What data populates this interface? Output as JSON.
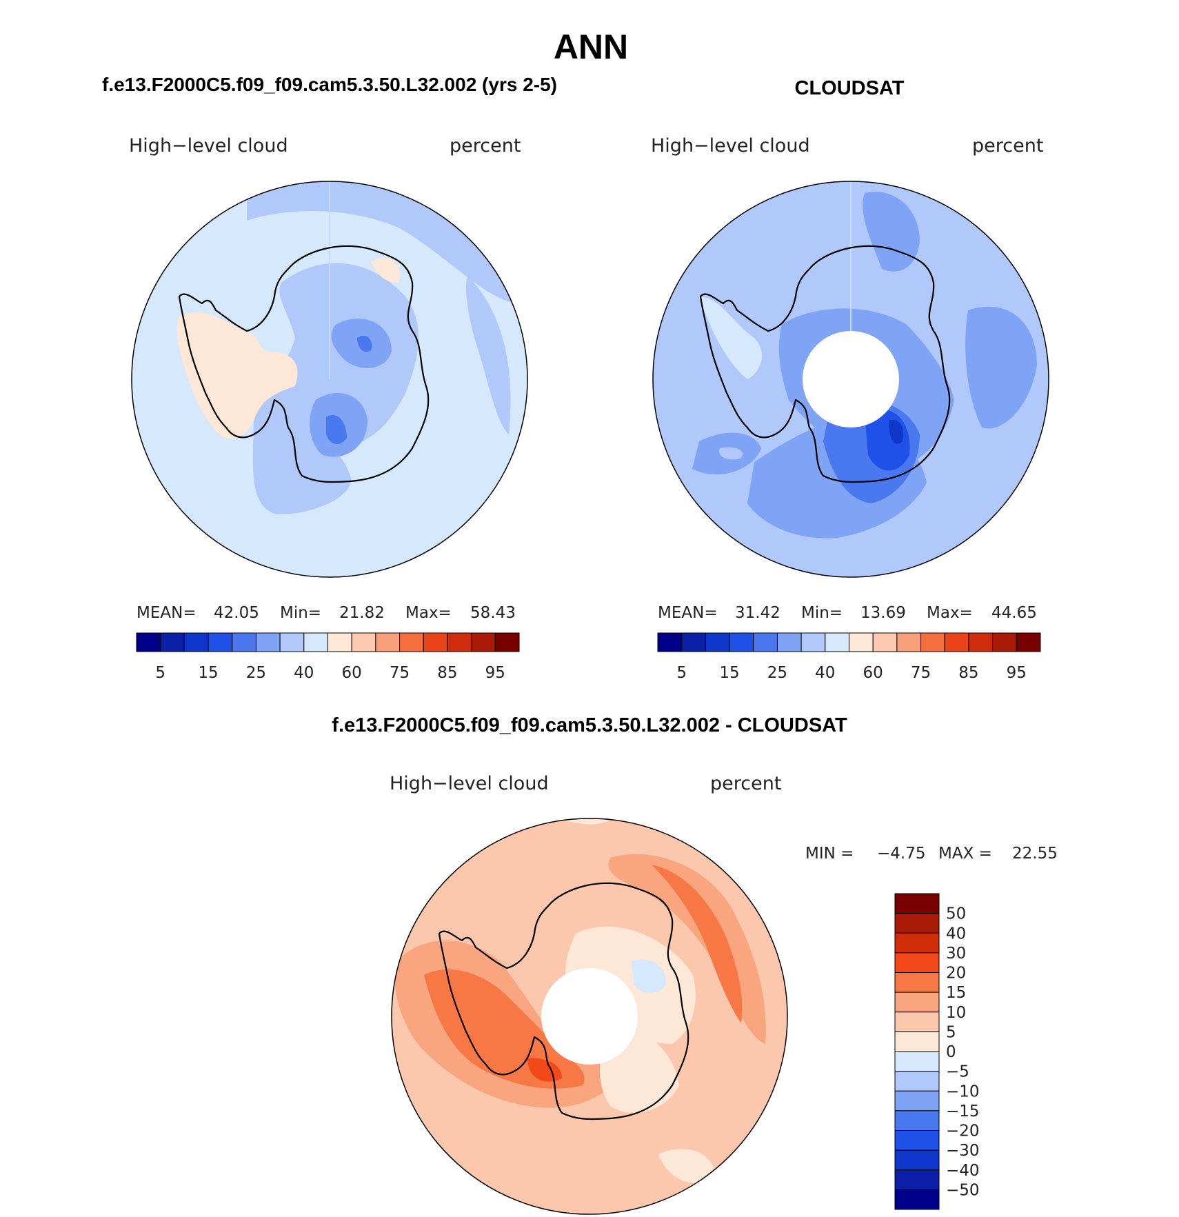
{
  "title": "ANN",
  "panels": [
    {
      "case_title": "f.e13.F2000C5.f09_f09.cam5.3.50.L32.002 (yrs 2-5)",
      "var_label": "High−level cloud",
      "units": "percent",
      "stats": {
        "mean_label": "MEAN=",
        "mean": "42.05",
        "min_label": "Min=",
        "min": "21.82",
        "max_label": "Max=",
        "max": "58.43"
      }
    },
    {
      "case_title": "CLOUDSAT",
      "var_label": "High−level cloud",
      "units": "percent",
      "stats": {
        "mean_label": "MEAN=",
        "mean": "31.42",
        "min_label": "Min=",
        "min": "13.69",
        "max_label": "Max=",
        "max": "44.65"
      }
    }
  ],
  "abs_colorbar": {
    "colors": [
      "#00008b",
      "#0a1fa6",
      "#0f37cc",
      "#1f50e8",
      "#4a79ef",
      "#7fa3f5",
      "#b1c8fa",
      "#d6e8fc",
      "#fde8d8",
      "#fcc9b0",
      "#f9a07a",
      "#f66e3e",
      "#ec4418",
      "#cf2b0c",
      "#aa1a06",
      "#7a0000"
    ],
    "labels": [
      "5",
      "15",
      "25",
      "40",
      "60",
      "75",
      "85",
      "95"
    ]
  },
  "diff_panel": {
    "case_title": "f.e13.F2000C5.f09_f09.cam5.3.50.L32.002 - CLOUDSAT",
    "var_label": "High−level cloud",
    "units": "percent",
    "min_label": "MIN =",
    "min": "−4.75",
    "max_label": "MAX =",
    "max": "22.55"
  },
  "diff_colorbar": {
    "colors_top_to_bottom": [
      "#7a0000",
      "#aa1a06",
      "#d22d0a",
      "#f2481a",
      "#f77845",
      "#f9a57f",
      "#fcc8ad",
      "#fde8d8",
      "#d6e8fc",
      "#b1c8fa",
      "#7fa3f5",
      "#4a79ef",
      "#1f50e8",
      "#0f37cc",
      "#0a1fa6",
      "#00008b"
    ],
    "labels_top_to_bottom": [
      "50",
      "40",
      "30",
      "20",
      "15",
      "10",
      "5",
      "0",
      "−5",
      "−10",
      "−15",
      "−20",
      "−30",
      "−40",
      "−50"
    ]
  }
}
